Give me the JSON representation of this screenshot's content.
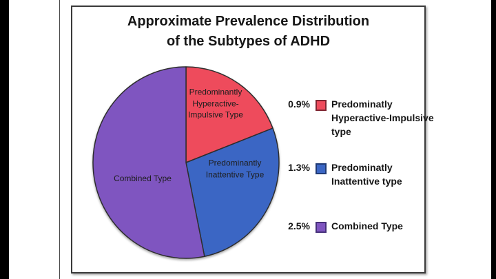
{
  "title": "Approximate Prevalence Distribution\nof the Subtypes of ADHD",
  "chart_data": {
    "type": "pie",
    "title": "Approximate Prevalence Distribution of the Subtypes of ADHD",
    "legend_position": "right",
    "start_angle_deg": 0,
    "direction": "clockwise",
    "total": 4.7,
    "outline_color": "#2d2d2d",
    "slices": [
      {
        "name": "Predominantly Hyperactive-Impulsive Type",
        "value": 0.9,
        "display_percent": "0.9%",
        "slice_label": "Predominantly\nHyperactive-\nImpulsive Type",
        "legend_label": "Predominatly\nHyperactive-Impulsive\ntype",
        "color": "#ee4b5c",
        "swatch_border": "#7f2733"
      },
      {
        "name": "Predominantly Inattentive Type",
        "value": 1.3,
        "display_percent": "1.3%",
        "slice_label": "Predominantly\nInattentive Type",
        "legend_label": "Predominatly\nInattentive type",
        "color": "#3b66c4",
        "swatch_border": "#1f3a75"
      },
      {
        "name": "Combined Type",
        "value": 2.5,
        "display_percent": "2.5%",
        "slice_label": "Combined Type",
        "legend_label": "Combined Type",
        "color": "#7f55c0",
        "swatch_border": "#46307a"
      }
    ]
  }
}
